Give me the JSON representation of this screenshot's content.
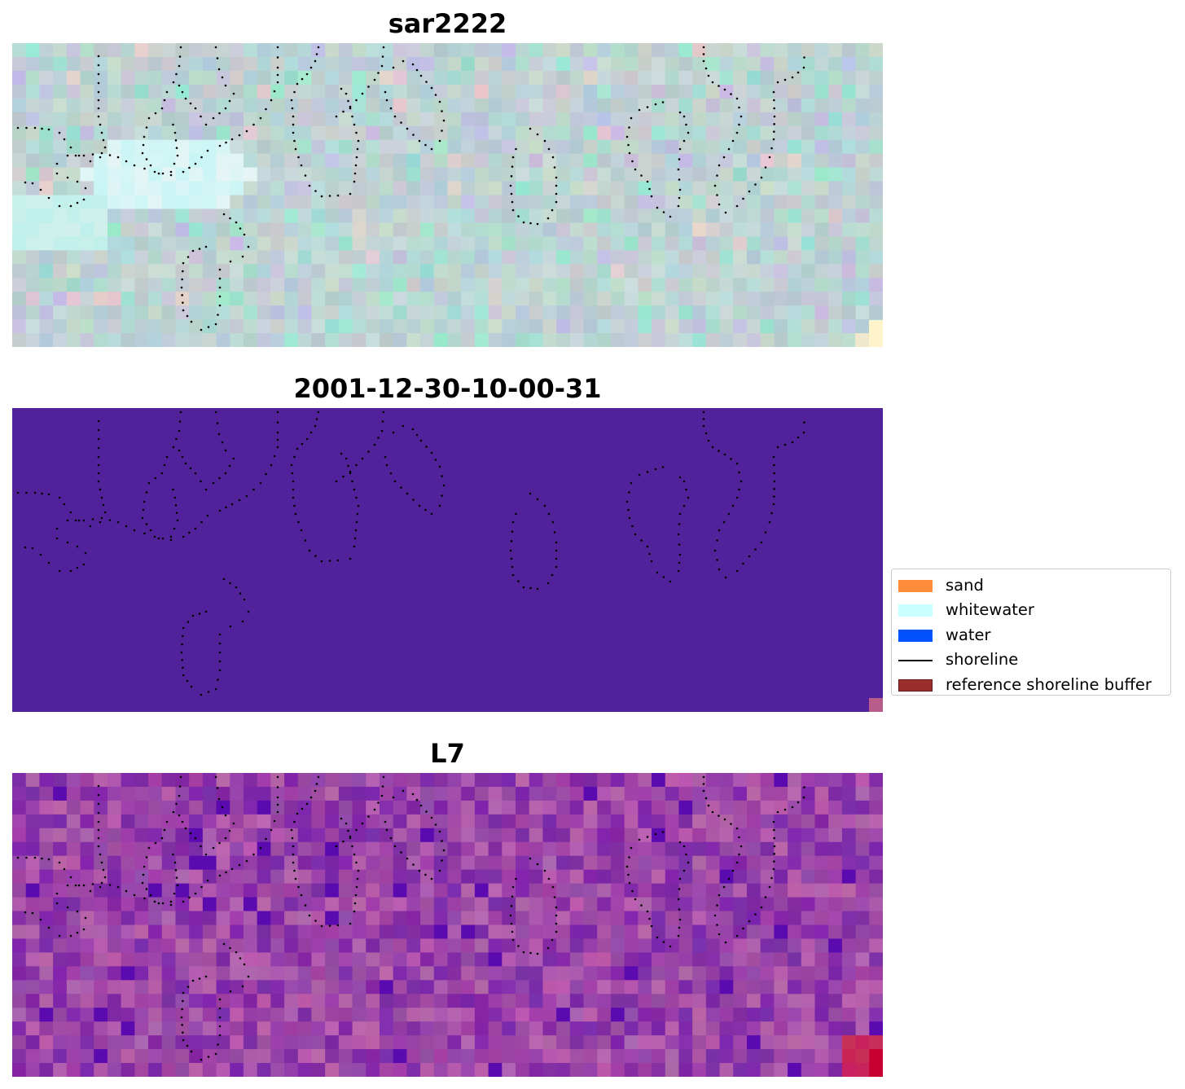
{
  "panels": [
    {
      "title": "sar2222",
      "style": "sar"
    },
    {
      "title": "2001-12-30-10-00-31",
      "style": "class"
    },
    {
      "title": "L7",
      "style": "l7"
    }
  ],
  "legend": {
    "items": [
      {
        "label": "sand",
        "color": "#ff8c3a",
        "kind": "patch"
      },
      {
        "label": "whitewater",
        "color": "#c8ffff",
        "kind": "patch"
      },
      {
        "label": "water",
        "color": "#0052ff",
        "kind": "patch"
      },
      {
        "label": "shoreline",
        "color": "#000000",
        "kind": "line"
      },
      {
        "label": "reference shoreline buffer",
        "color": "#9b2d2d",
        "kind": "patch-edged"
      }
    ]
  },
  "colors": {
    "class_background": "#52229a",
    "class_corner": "#b85c8c",
    "shoreline_dots": "#000000"
  }
}
